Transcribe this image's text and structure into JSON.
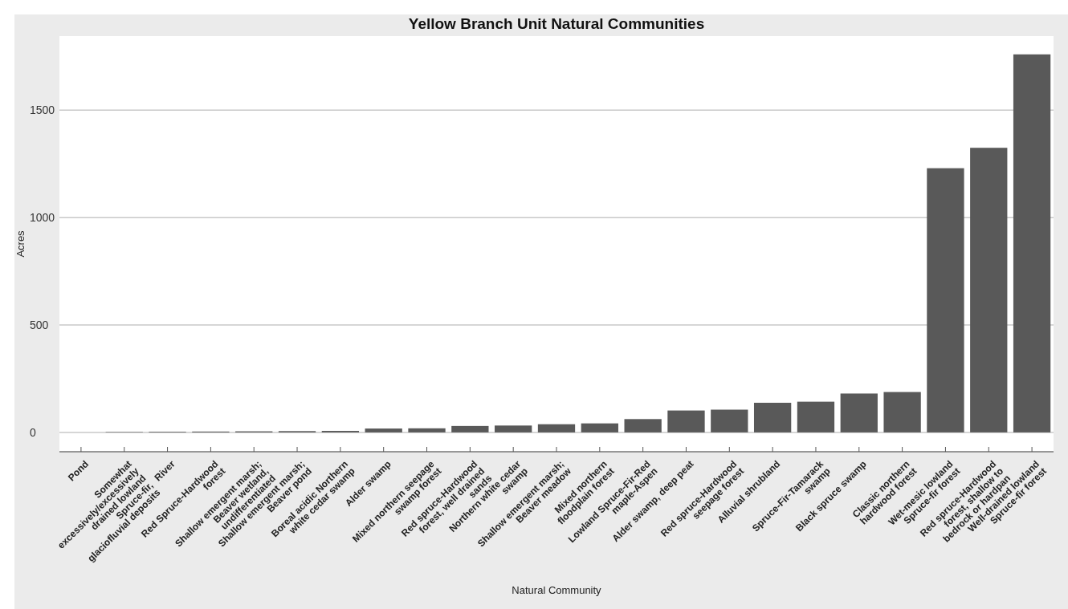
{
  "chart_data": {
    "type": "bar",
    "title": "Yellow Branch Unit Natural Communities",
    "xlabel": "Natural Community",
    "ylabel": "Acres",
    "categories": [
      "Pond",
      "Somewhat\nexcessively/excessively\ndrained lowland\nSpruce-fir,\nglaciofluvial deposits",
      "River",
      "Red Spruce-Hardwood\nforest",
      "Shallow emergent marsh;\nBeaver wetland,\nundifferentiated",
      "Shallow emergent marsh;\nBeaver pond",
      "Boreal acidic Northern\nwhite cedar swamp",
      "Alder swamp",
      "Mixed northern seepage\nswamp forest",
      "Red spruce-Hardwood\nforest, well drained\nsands",
      "Northern white cedar\nswamp",
      "Shallow emergent marsh;\nBeaver meadow",
      "Mixed northern\nfloodplain forest",
      "Lowland Spruce-Fir-Red\nmaple-Aspen",
      "Alder swamp, deep peat",
      "Red spruce-Hardwood\nseepage forest",
      "Alluvial shrubland",
      "Spruce-Fir-Tamarack\nswamp",
      "Black spruce swamp",
      "Classic northern\nhardwood forest",
      "Wet-mesic lowland\nSpruce-fir forest",
      "Red spruce-Hardwood\nforest, shallow to\nbedrock or hardpan",
      "Well-drained lowland\nSpruce-fir forest"
    ],
    "values": [
      0,
      2,
      3,
      4,
      5,
      6,
      7,
      18,
      19,
      30,
      32,
      38,
      42,
      62,
      102,
      106,
      138,
      143,
      181,
      188,
      1230,
      1325,
      1760
    ],
    "color": "#595959",
    "ylim": [
      -90,
      1845
    ],
    "yticks": [
      0,
      500,
      1000,
      1500
    ],
    "grid": "y"
  }
}
